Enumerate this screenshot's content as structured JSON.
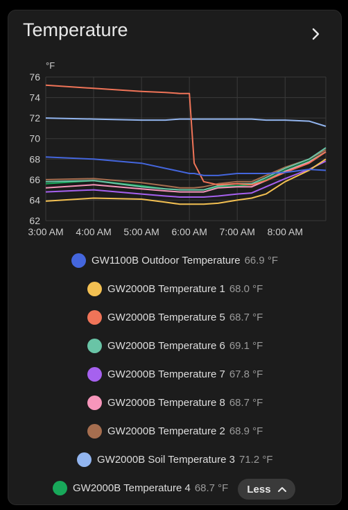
{
  "card": {
    "title": "Temperature"
  },
  "less_button": {
    "label": "Less"
  },
  "colors": {
    "card_bg": "#1c1c1c",
    "grid": "#3a3a3a",
    "s_outdoor": "#4466dd",
    "s_t1": "#f3c052",
    "s_t5": "#f07458",
    "s_t6": "#69c4a6",
    "s_t7": "#a661ef",
    "s_t8": "#f796bb",
    "s_t2": "#a66e4f",
    "s_soil3": "#92b5ef",
    "s_t4": "#18a85a"
  },
  "chart_data": {
    "type": "line",
    "ylabel": "°F",
    "ylim": [
      62,
      76
    ],
    "yticks": [
      "76",
      "74",
      "72",
      "70",
      "68",
      "66",
      "64",
      "62"
    ],
    "xtick_labels": [
      "3:00 AM",
      "4:00 AM",
      "5:00 AM",
      "6:00 AM",
      "7:00 AM",
      "8:00 AM"
    ],
    "x": [
      3.0,
      4.0,
      5.0,
      5.5,
      5.8,
      6.0,
      6.1,
      6.3,
      6.6,
      7.0,
      7.3,
      7.6,
      8.0,
      8.5,
      8.85
    ],
    "x_range": [
      3.0,
      8.85
    ],
    "grid": true,
    "series": [
      {
        "name": "GW1100B Outdoor Temperature",
        "value": "66.9 °F",
        "color_key": "s_outdoor",
        "values": [
          68.2,
          68.0,
          67.6,
          67.1,
          66.8,
          66.6,
          66.6,
          66.4,
          66.4,
          66.6,
          66.6,
          66.6,
          66.7,
          67.0,
          66.9
        ]
      },
      {
        "name": "GW2000B Temperature 1",
        "value": "68.0 °F",
        "color_key": "s_t1",
        "values": [
          63.9,
          64.2,
          64.1,
          63.8,
          63.6,
          63.6,
          63.6,
          63.6,
          63.7,
          64.0,
          64.2,
          64.6,
          65.8,
          66.9,
          68.0
        ]
      },
      {
        "name": "GW2000B Temperature 5",
        "value": "68.7 °F",
        "color_key": "s_t5",
        "values": [
          75.2,
          74.9,
          74.6,
          74.5,
          74.4,
          74.4,
          67.6,
          65.8,
          65.5,
          65.6,
          65.5,
          65.9,
          66.7,
          67.6,
          68.7
        ]
      },
      {
        "name": "GW2000B Temperature 6",
        "value": "69.1 °F",
        "color_key": "s_t6",
        "values": [
          65.8,
          65.9,
          65.3,
          65.1,
          65.0,
          65.0,
          65.0,
          65.0,
          65.4,
          65.6,
          65.6,
          66.2,
          67.1,
          68.0,
          69.1
        ]
      },
      {
        "name": "GW2000B Temperature 7",
        "value": "67.8 °F",
        "color_key": "s_t7",
        "values": [
          64.8,
          65.0,
          64.6,
          64.4,
          64.3,
          64.3,
          64.3,
          64.3,
          64.4,
          64.6,
          64.7,
          65.3,
          66.1,
          67.0,
          67.8
        ]
      },
      {
        "name": "GW2000B Temperature 8",
        "value": "68.7 °F",
        "color_key": "s_t8",
        "values": [
          65.2,
          65.5,
          65.1,
          64.9,
          64.8,
          64.8,
          64.8,
          64.8,
          65.2,
          65.3,
          65.3,
          65.9,
          66.8,
          67.7,
          68.7
        ]
      },
      {
        "name": "GW2000B Temperature 2",
        "value": "68.9 °F",
        "color_key": "s_t2",
        "values": [
          66.0,
          66.1,
          65.7,
          65.4,
          65.2,
          65.2,
          65.2,
          65.3,
          65.6,
          65.8,
          65.8,
          66.4,
          67.2,
          68.0,
          68.9
        ]
      },
      {
        "name": "GW2000B Soil Temperature 3",
        "value": "71.2 °F",
        "color_key": "s_soil3",
        "values": [
          72.0,
          71.9,
          71.8,
          71.8,
          71.9,
          71.9,
          71.9,
          71.9,
          71.9,
          71.9,
          71.9,
          71.8,
          71.8,
          71.7,
          71.2
        ]
      },
      {
        "name": "GW2000B Temperature 4",
        "value": "68.7 °F",
        "color_key": "s_t4",
        "values": [
          65.6,
          65.9,
          65.4,
          65.1,
          65.0,
          65.0,
          65.0,
          65.0,
          65.3,
          65.4,
          65.5,
          66.0,
          66.9,
          67.8,
          68.7
        ]
      }
    ]
  }
}
